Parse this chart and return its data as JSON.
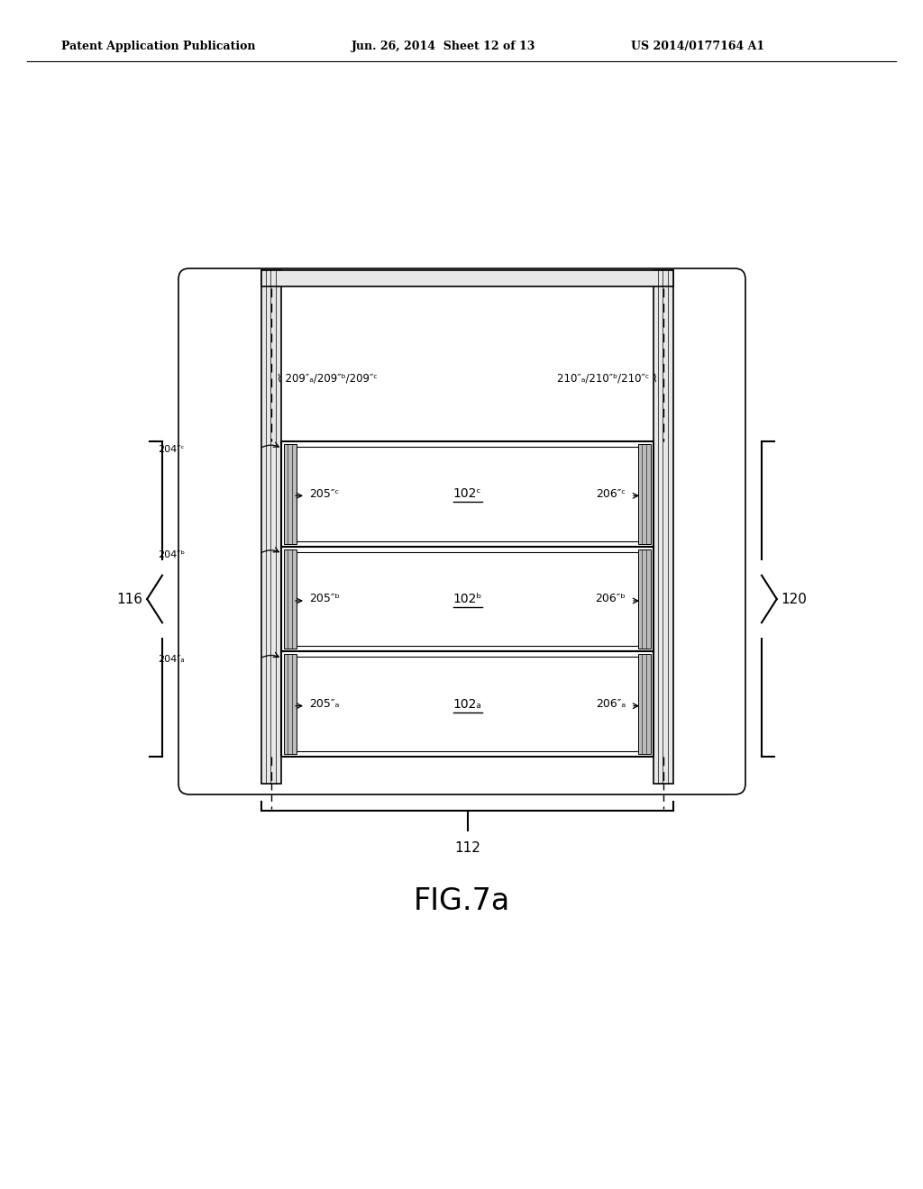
{
  "patent_header_left": "Patent Application Publication",
  "patent_header_mid": "Jun. 26, 2014  Sheet 12 of 13",
  "patent_header_right": "US 2014/0177164 A1",
  "bg_color": "#ffffff",
  "text_color": "#000000",
  "fig_caption": "FIG.7a",
  "label_116": "116",
  "label_120": "120",
  "label_112": "112",
  "label_209": "209″ₐ/209″ᵇ/209″ᶜ",
  "label_210": "210″ₐ/210″ᵇ/210″ᶜ",
  "rows": [
    {
      "label_left": "205″ᶜ",
      "label_center": "102ᶜ",
      "label_right": "206″ᶜ",
      "side_label": "204″ᶜ"
    },
    {
      "label_left": "205″ᵇ",
      "label_center": "102ᵇ",
      "label_right": "206″ᵇ",
      "side_label": "204″ᵇ"
    },
    {
      "label_left": "205″ₐ",
      "label_center": "102ₐ",
      "label_right": "206″ₐ",
      "side_label": "204″ₐ"
    }
  ]
}
